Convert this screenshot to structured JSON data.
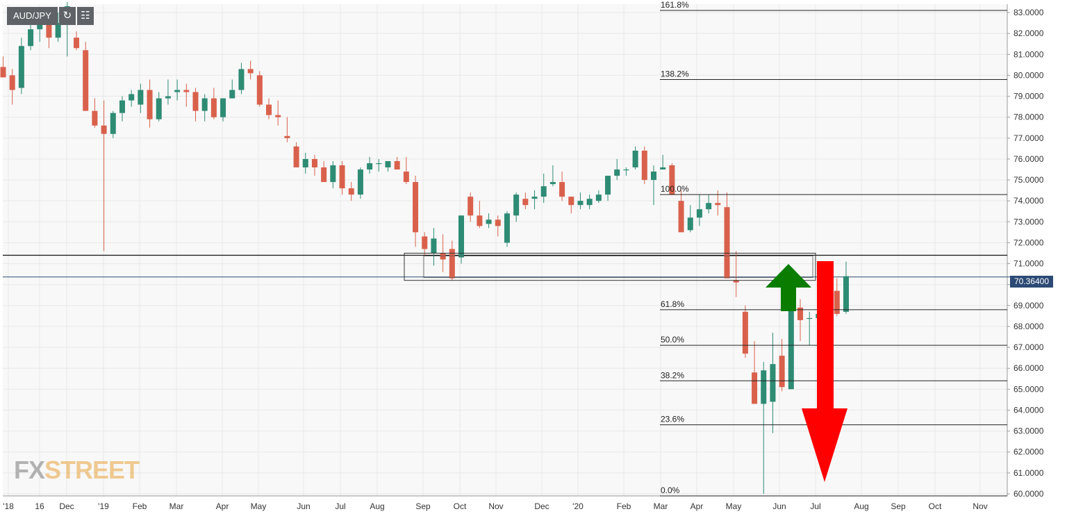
{
  "symbol": "AUD/JPY",
  "current_price_label": "70.36400",
  "watermark": {
    "part1": "FX",
    "part2": "STREET"
  },
  "colors": {
    "up": "#2e8b74",
    "down": "#d9614c",
    "grid": "#e8e8e8",
    "background": "#f8f8f8",
    "arrow_up": "#0a7d00",
    "arrow_down": "#ff0000",
    "price_line": "#2c4a75"
  },
  "chart_data": {
    "type": "candlestick",
    "title": "",
    "ylim": [
      59.9,
      83.4
    ],
    "y_ticks": [
      "83.0000",
      "82.0000",
      "81.0000",
      "80.0000",
      "79.0000",
      "78.0000",
      "77.0000",
      "76.0000",
      "75.0000",
      "74.0000",
      "73.0000",
      "72.0000",
      "71.0000",
      "70.0000",
      "69.0000",
      "68.0000",
      "67.0000",
      "66.0000",
      "65.0000",
      "64.0000",
      "63.0000",
      "62.0000",
      "61.0000",
      "60.0000"
    ],
    "x_ticks": [
      "'18",
      "16",
      "Dec",
      "'19",
      "Feb",
      "Mar",
      "Apr",
      "May",
      "Jun",
      "Jul",
      "Aug",
      "Sep",
      "Oct",
      "Nov",
      "Dec",
      "'20",
      "Feb",
      "Mar",
      "Apr",
      "May",
      "Jun",
      "Jul",
      "Aug",
      "Sep",
      "Oct",
      "Nov"
    ],
    "candles_ohlc": [
      [
        80.4,
        80.9,
        80.0,
        79.9
      ],
      [
        80.0,
        80.3,
        78.6,
        79.3
      ],
      [
        79.4,
        81.8,
        79.1,
        81.4
      ],
      [
        81.4,
        82.6,
        81.2,
        82.2
      ],
      [
        82.2,
        83.2,
        81.6,
        82.6
      ],
      [
        82.6,
        83.0,
        81.3,
        81.8
      ],
      [
        81.8,
        83.0,
        81.6,
        82.5
      ],
      [
        82.5,
        83.5,
        80.9,
        83.3
      ],
      [
        81.8,
        82.1,
        81.2,
        81.3
      ],
      [
        81.2,
        81.6,
        78.3,
        78.3
      ],
      [
        78.3,
        78.9,
        77.5,
        77.6
      ],
      [
        77.6,
        78.8,
        71.6,
        77.2
      ],
      [
        77.2,
        78.3,
        77.0,
        78.2
      ],
      [
        78.2,
        79.0,
        77.8,
        78.8
      ],
      [
        78.8,
        79.3,
        78.5,
        79.1
      ],
      [
        78.6,
        79.6,
        78.2,
        79.3
      ],
      [
        79.3,
        79.8,
        77.5,
        77.9
      ],
      [
        77.9,
        79.2,
        77.8,
        78.9
      ],
      [
        78.9,
        79.8,
        78.6,
        79.0
      ],
      [
        79.2,
        79.8,
        78.8,
        79.3
      ],
      [
        79.3,
        79.6,
        78.5,
        79.2
      ],
      [
        79.2,
        79.4,
        77.8,
        78.3
      ],
      [
        78.3,
        79.1,
        77.8,
        78.9
      ],
      [
        78.9,
        79.4,
        77.9,
        78.0
      ],
      [
        78.0,
        78.9,
        77.8,
        78.9
      ],
      [
        78.9,
        79.8,
        78.9,
        79.3
      ],
      [
        79.3,
        80.6,
        79.1,
        80.3
      ],
      [
        80.3,
        80.7,
        79.8,
        80.1
      ],
      [
        80.0,
        80.2,
        78.5,
        78.6
      ],
      [
        78.6,
        78.9,
        77.9,
        78.1
      ],
      [
        78.1,
        78.8,
        77.6,
        78.0
      ],
      [
        77.1,
        78.0,
        76.8,
        77.0
      ],
      [
        76.6,
        76.8,
        75.6,
        75.6
      ],
      [
        75.6,
        76.3,
        75.3,
        76.0
      ],
      [
        76.0,
        76.2,
        75.2,
        75.6
      ],
      [
        75.6,
        75.9,
        75.0,
        74.9
      ],
      [
        74.9,
        75.9,
        74.6,
        75.7
      ],
      [
        75.7,
        75.9,
        74.3,
        74.6
      ],
      [
        74.6,
        74.9,
        74.0,
        74.3
      ],
      [
        74.3,
        75.6,
        74.1,
        75.5
      ],
      [
        75.5,
        76.1,
        75.3,
        75.8
      ],
      [
        75.8,
        76.0,
        75.4,
        75.8
      ],
      [
        75.6,
        75.9,
        75.4,
        75.9
      ],
      [
        75.9,
        76.1,
        75.5,
        75.5
      ],
      [
        75.4,
        76.1,
        74.8,
        74.9
      ],
      [
        74.9,
        75.2,
        71.8,
        72.5
      ],
      [
        72.3,
        72.5,
        71.4,
        71.7
      ],
      [
        71.5,
        72.7,
        70.9,
        72.2
      ],
      [
        71.5,
        72.4,
        70.6,
        71.2
      ],
      [
        71.7,
        72.1,
        70.2,
        70.3
      ],
      [
        71.3,
        73.3,
        71.0,
        73.3
      ],
      [
        74.2,
        74.4,
        73.0,
        73.3
      ],
      [
        73.3,
        74.0,
        72.7,
        72.8
      ],
      [
        72.9,
        73.4,
        72.7,
        73.1
      ],
      [
        73.1,
        73.3,
        72.3,
        72.8
      ],
      [
        72.0,
        73.5,
        71.8,
        73.4
      ],
      [
        73.3,
        74.4,
        73.0,
        74.3
      ],
      [
        74.1,
        74.4,
        73.6,
        73.8
      ],
      [
        74.1,
        74.5,
        73.6,
        74.2
      ],
      [
        74.2,
        75.3,
        73.9,
        74.7
      ],
      [
        74.8,
        75.7,
        74.7,
        74.9
      ],
      [
        74.9,
        75.4,
        74.0,
        74.2
      ],
      [
        74.2,
        74.2,
        73.4,
        73.8
      ],
      [
        73.8,
        74.4,
        73.6,
        74.0
      ],
      [
        73.8,
        74.3,
        73.6,
        74.1
      ],
      [
        74.0,
        74.5,
        73.9,
        74.3
      ],
      [
        74.3,
        75.2,
        74.0,
        75.2
      ],
      [
        75.2,
        76.0,
        75.0,
        75.5
      ],
      [
        75.5,
        75.6,
        75.2,
        75.5
      ],
      [
        75.6,
        76.6,
        75.5,
        76.4
      ],
      [
        76.4,
        76.6,
        74.8,
        75.0
      ],
      [
        75.0,
        75.7,
        73.8,
        75.4
      ],
      [
        75.5,
        76.2,
        75.5,
        75.6
      ],
      [
        75.7,
        75.8,
        74.3,
        74.3
      ],
      [
        74.0,
        74.5,
        72.5,
        72.5
      ],
      [
        72.6,
        73.8,
        72.5,
        73.2
      ],
      [
        73.2,
        74.3,
        72.8,
        73.6
      ],
      [
        73.6,
        74.3,
        73.4,
        73.9
      ],
      [
        73.9,
        74.5,
        73.3,
        73.8
      ],
      [
        73.7,
        74.4,
        73.5,
        70.3
      ],
      [
        70.2,
        71.6,
        69.4,
        70.1
      ],
      [
        68.7,
        69.0,
        66.5,
        66.7
      ],
      [
        65.8,
        67.3,
        64.6,
        64.3
      ],
      [
        64.3,
        66.3,
        60.0,
        65.9
      ],
      [
        64.4,
        67.7,
        62.9,
        66.2
      ],
      [
        66.6,
        67.4,
        64.9,
        65.1
      ],
      [
        65.0,
        69.1,
        65.0,
        68.8
      ],
      [
        68.9,
        69.3,
        67.3,
        68.3
      ],
      [
        68.4,
        68.7,
        67.1,
        68.4
      ],
      [
        68.4,
        70.2,
        67.7,
        68.6
      ],
      [
        68.6,
        69.7,
        67.6,
        69.6
      ],
      [
        69.7,
        70.3,
        68.5,
        68.6
      ],
      [
        68.7,
        71.1,
        68.6,
        70.4
      ]
    ],
    "horizontal_lines": [
      71.4
    ],
    "current_price": 70.364,
    "fibonacci_levels": [
      {
        "label": "161.8%",
        "value": 83.1
      },
      {
        "label": "138.2%",
        "value": 79.8
      },
      {
        "label": "100.0%",
        "value": 74.3
      },
      {
        "label": "61.8%",
        "value": 68.8
      },
      {
        "label": "50.0%",
        "value": 67.1
      },
      {
        "label": "38.2%",
        "value": 65.4
      },
      {
        "label": "23.6%",
        "value": 63.3
      },
      {
        "label": "0.0%",
        "value": 59.9
      }
    ],
    "zone": {
      "y_top": 71.5,
      "y_bottom": 70.2
    },
    "arrows": [
      {
        "direction": "up",
        "color": "green"
      },
      {
        "direction": "down",
        "color": "red"
      }
    ],
    "grid": true
  }
}
